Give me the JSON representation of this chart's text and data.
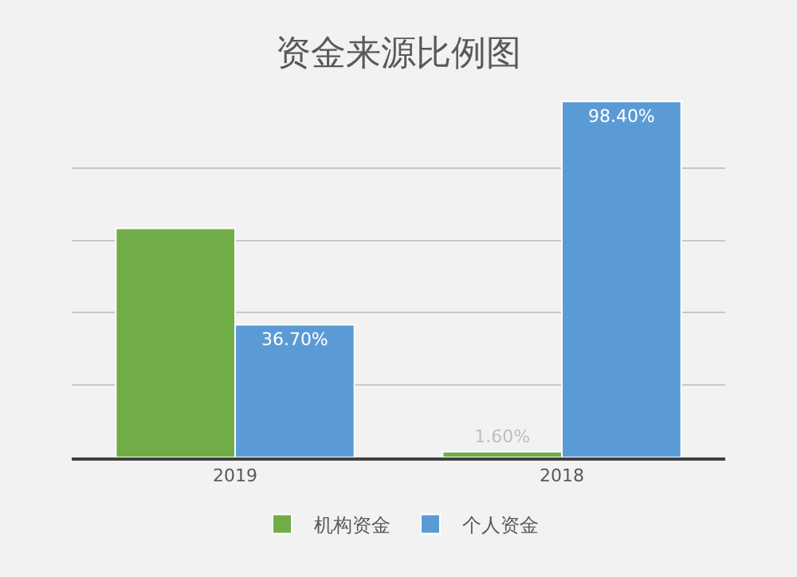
{
  "chart_data": {
    "type": "bar",
    "title": "资金来源比例图",
    "categories": [
      "2019",
      "2018"
    ],
    "series": [
      {
        "name": "机构资金",
        "color": "#70ad47",
        "values": [
          63.3,
          1.6
        ],
        "value_labels": [
          null,
          "1.60%"
        ]
      },
      {
        "name": "个人资金",
        "color": "#5b9bd5",
        "values": [
          36.7,
          98.4
        ],
        "value_labels": [
          "36.70%",
          "98.40%"
        ]
      }
    ],
    "ylim": [
      0,
      100
    ],
    "yticks": [
      {
        "value": 0,
        "label": null
      },
      {
        "value": 20,
        "label": null
      },
      {
        "value": 40,
        "label": null
      },
      {
        "value": 60,
        "label": null
      },
      {
        "value": 80,
        "label": null
      }
    ],
    "tick_labels": "x",
    "grid": "y",
    "legend": "bottom"
  }
}
